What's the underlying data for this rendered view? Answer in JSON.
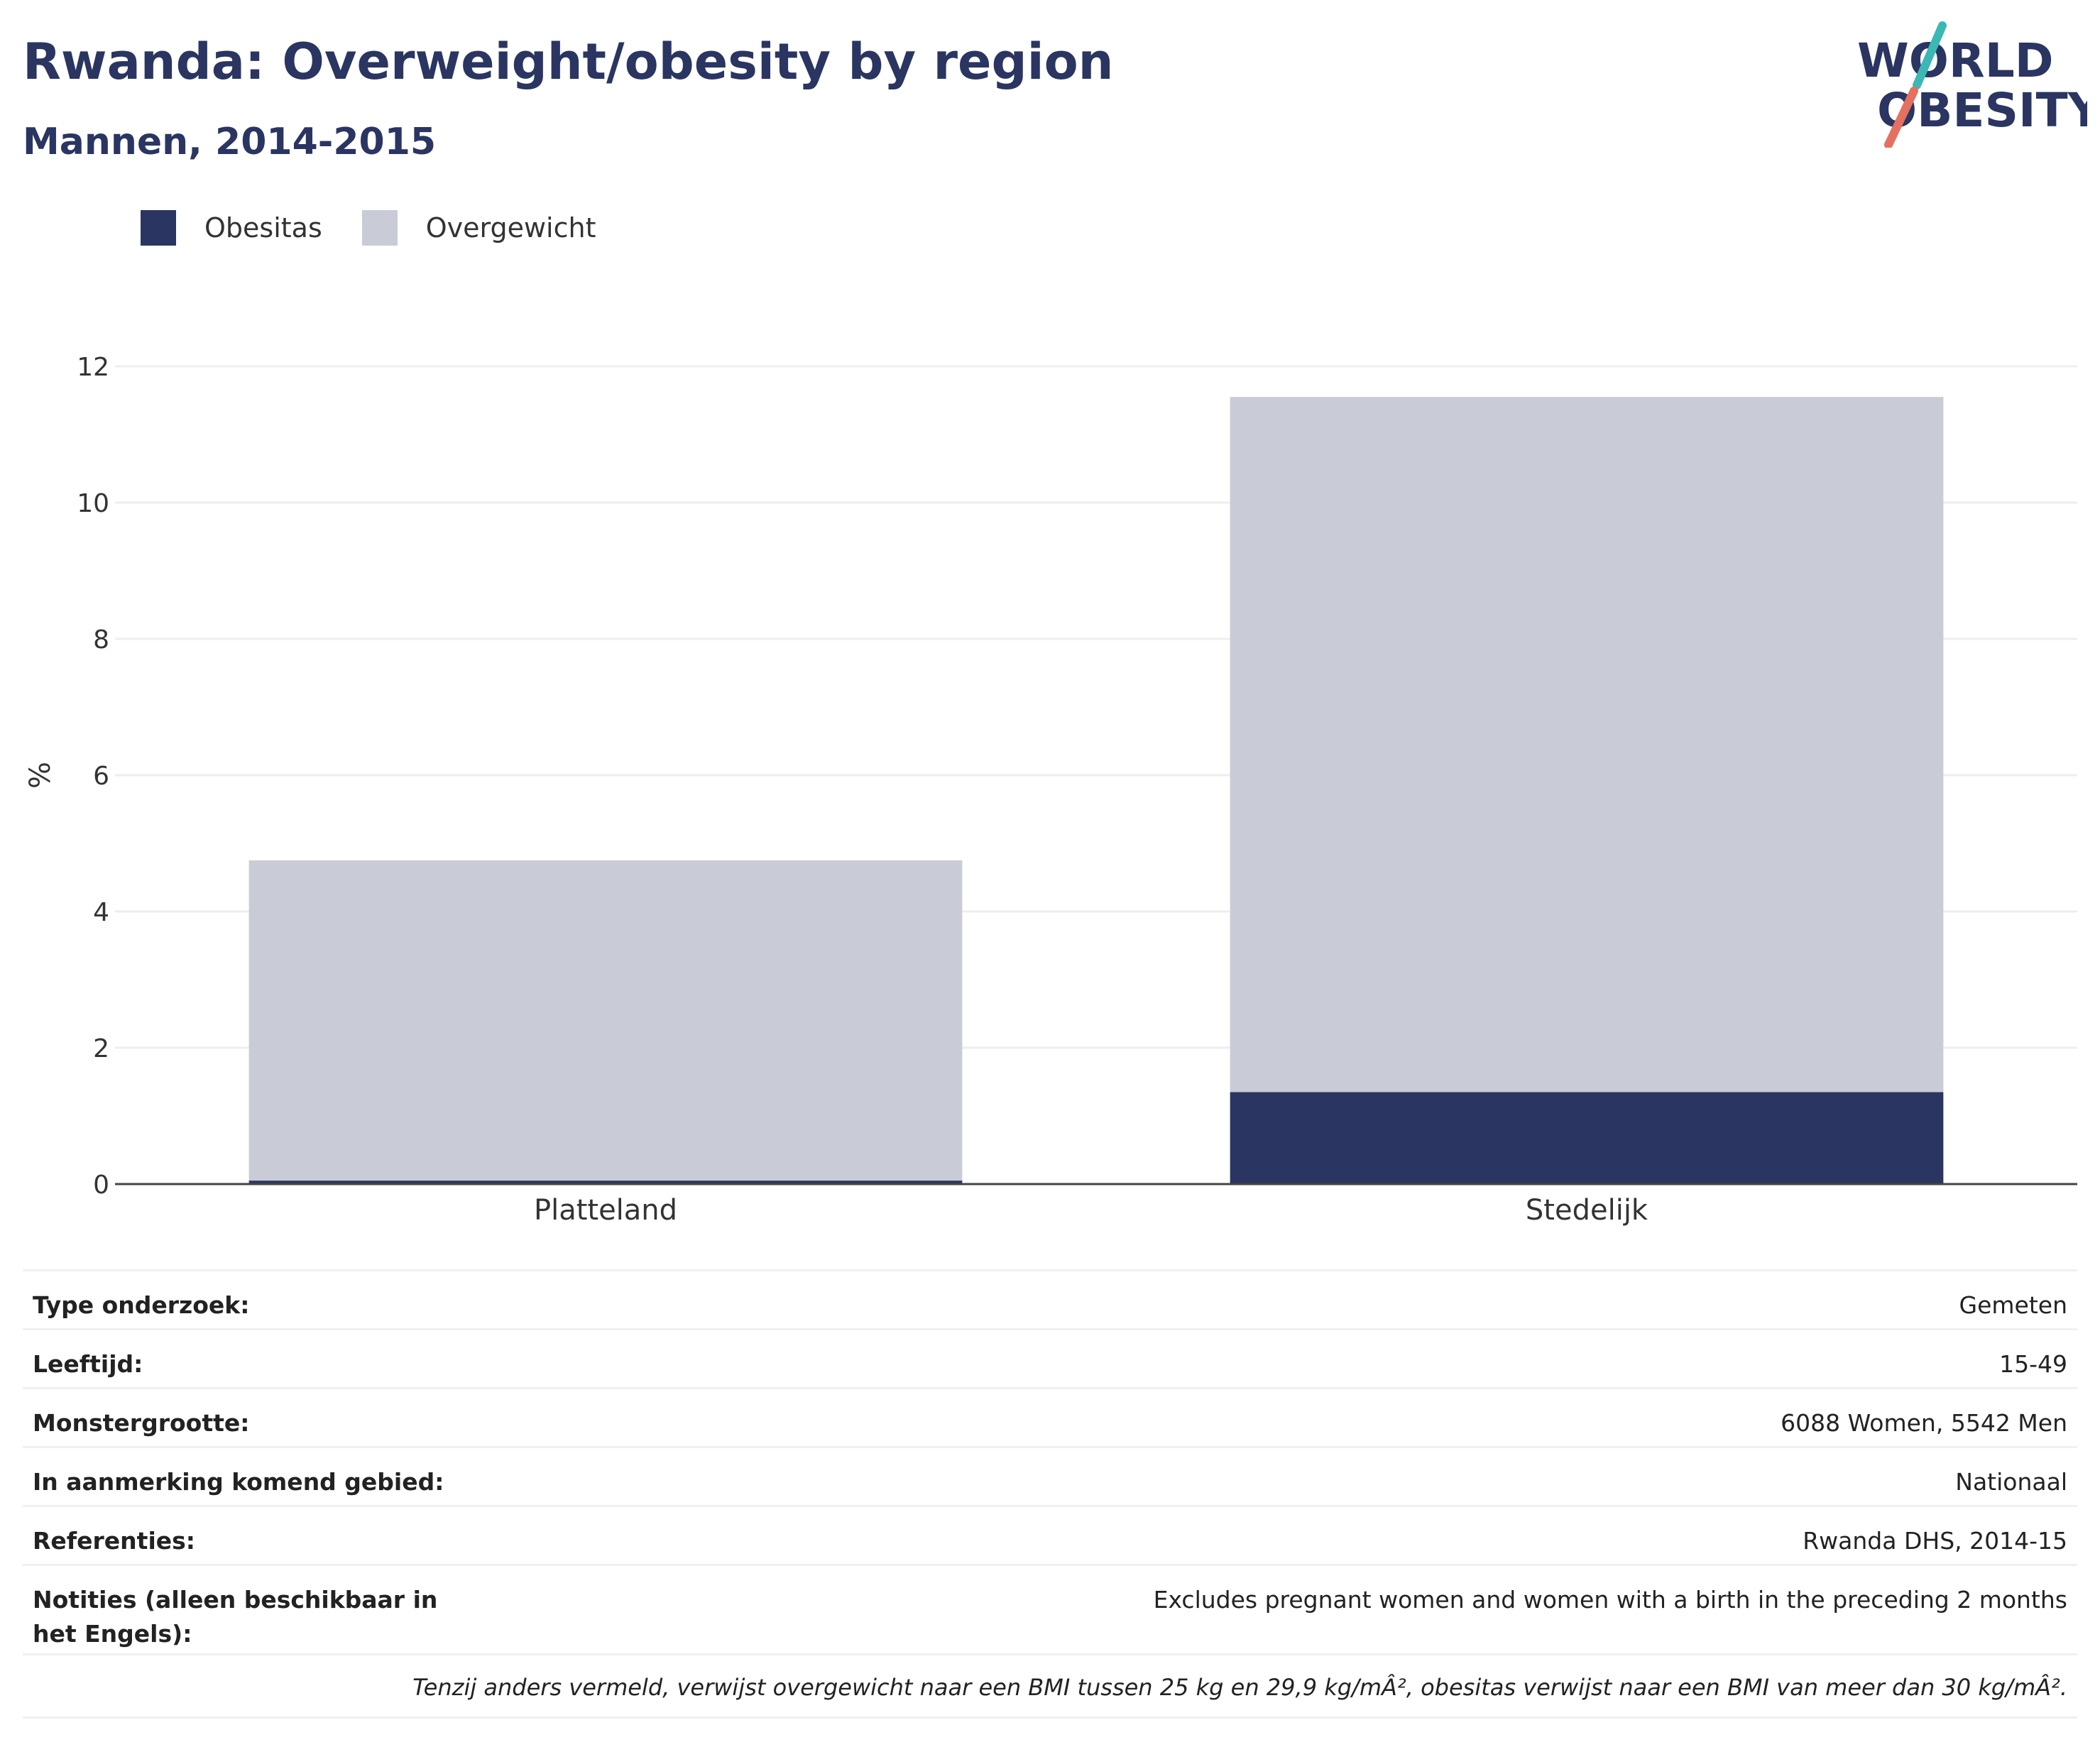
{
  "header": {
    "title": "Rwanda: Overweight/obesity by region",
    "subtitle": "Mannen, 2014-2015"
  },
  "logo": {
    "line1": "WORLD",
    "line2": "OBESITY",
    "colors": {
      "text": "#2a3561",
      "slash_top": "#3bb8b6",
      "slash_bottom": "#e4705f"
    }
  },
  "legend": [
    {
      "label": "Obesitas",
      "color": "#2a3561"
    },
    {
      "label": "Overgewicht",
      "color": "#c9cbd7"
    }
  ],
  "chart_data": {
    "type": "bar",
    "stacked": true,
    "categories": [
      "Platteland",
      "Stedelijk"
    ],
    "series": [
      {
        "name": "Obesitas",
        "color": "#2a3561",
        "values": [
          0.05,
          1.35
        ]
      },
      {
        "name": "Overgewicht",
        "color": "#c9cbd7",
        "values": [
          4.7,
          10.2
        ]
      }
    ],
    "ylabel": "%",
    "ylim": [
      0,
      12
    ],
    "yticks": [
      0,
      2,
      4,
      6,
      8,
      10,
      12
    ],
    "grid": true,
    "legend_position": "top-left"
  },
  "info": {
    "rows": [
      {
        "label": "Type onderzoek:",
        "value": "Gemeten"
      },
      {
        "label": "Leeftijd:",
        "value": "15-49"
      },
      {
        "label": "Monstergrootte:",
        "value": "6088 Women, 5542 Men"
      },
      {
        "label": "In aanmerking komend gebied:",
        "value": "Nationaal"
      },
      {
        "label": "Referenties:",
        "value": "Rwanda DHS, 2014-15"
      },
      {
        "label": "Notities (alleen beschikbaar in het Engels):",
        "value": "Excludes pregnant women and women with a birth in the preceding 2 months"
      }
    ],
    "footnote": "Tenzij anders vermeld, verwijst overgewicht naar een BMI tussen 25 kg en 29,9 kg/mÂ², obesitas verwijst naar een BMI van meer dan 30 kg/mÂ²."
  }
}
